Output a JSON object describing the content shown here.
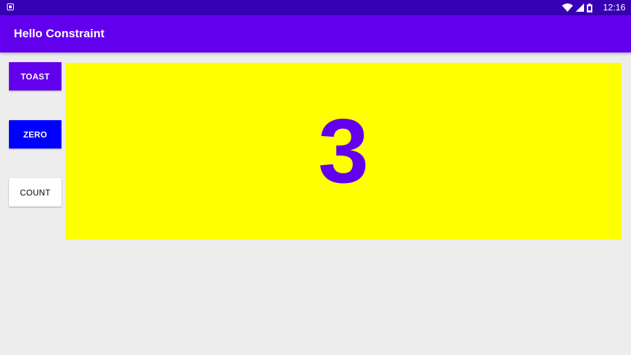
{
  "status_bar": {
    "time": "12:16",
    "icons": [
      "android-notification-icon",
      "wifi-icon",
      "signal-icon",
      "battery-icon"
    ]
  },
  "app_bar": {
    "title": "Hello Constraint"
  },
  "buttons": {
    "toast": "TOAST",
    "zero": "ZERO",
    "count": "COUNT"
  },
  "counter": {
    "value": "3"
  },
  "colors": {
    "primary": "#6200ee",
    "primary_dark": "#3700b3",
    "zero_button": "#0000ff",
    "panel_background": "#ffff00",
    "window_background": "#ededed"
  }
}
